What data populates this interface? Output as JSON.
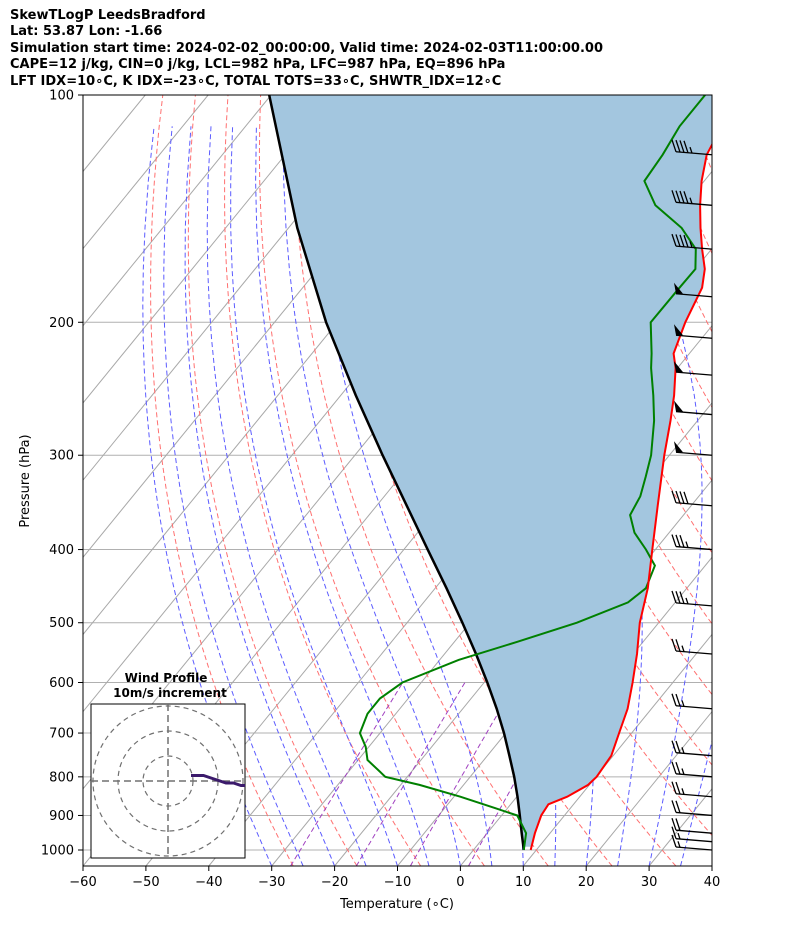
{
  "header": {
    "line1": "SkewTLogP LeedsBradford",
    "line2": "Lat: 53.87   Lon: -1.66",
    "line3": "Simulation start time: 2024-02-02_00:00:00, Valid time: 2024-02-03T11:00:00.00",
    "line4": "CAPE=12 j/kg, CIN=0 j/kg, LCL=982 hPa, LFC=987 hPa, EQ=896 hPa",
    "line5": "LFT IDX=10∘C, K IDX=-23∘C, TOTAL TOTS=33∘C, SHWTR_IDX=12∘C"
  },
  "colors": {
    "temperature": "#ff0000",
    "dewpoint": "#008000",
    "parcel": "#000000",
    "cape_fill": "#a3c6df",
    "dry_adiabat": "#ff7070",
    "moist_adiabat": "#5c5cff",
    "mixing_ratio": "#a040c0",
    "isotherm": "#a8a8a8",
    "hodograph": "#3b1a6b"
  },
  "chart_data": {
    "type": "skew-t",
    "xlabel": "Temperature (∘C)",
    "ylabel": "Pressure (hPa)",
    "xlim": [
      -60,
      40
    ],
    "ylim": [
      1050,
      100
    ],
    "x_scale": "linear (skewed)",
    "y_scale": "log",
    "x_ticks": [
      "−60",
      "−50",
      "−40",
      "−30",
      "−20",
      "−10",
      "0",
      "10",
      "20",
      "30",
      "40"
    ],
    "x_tick_values": [
      -60,
      -50,
      -40,
      -30,
      -20,
      -10,
      0,
      10,
      20,
      30,
      40
    ],
    "y_ticks": [
      1000,
      900,
      800,
      700,
      600,
      500,
      400,
      300,
      200,
      100
    ],
    "grid": true,
    "series": [
      {
        "key": "temperature",
        "pressure": [
          1000,
          950,
          900,
          870,
          850,
          820,
          800,
          750,
          700,
          650,
          600,
          550,
          500,
          450,
          400,
          350,
          300,
          270,
          250,
          230,
          220,
          200,
          180,
          170,
          160,
          150,
          140,
          130,
          120,
          110,
          100
        ],
        "values": [
          9.1,
          7.6,
          6.3,
          6.0,
          8.0,
          9.8,
          10.1,
          9.7,
          8.0,
          6.2,
          3.6,
          0.6,
          -3.0,
          -6.2,
          -10.5,
          -15.3,
          -20.8,
          -24.3,
          -27.0,
          -30.3,
          -32.5,
          -34.7,
          -36.5,
          -38.5,
          -41.5,
          -44.5,
          -47.5,
          -50.4,
          -53.0,
          -54.3,
          -55.5
        ]
      },
      {
        "key": "dewpoint",
        "pressure": [
          1000,
          950,
          900,
          880,
          850,
          820,
          800,
          760,
          730,
          700,
          660,
          630,
          600,
          560,
          530,
          500,
          470,
          450,
          420,
          400,
          380,
          360,
          340,
          320,
          300,
          270,
          250,
          230,
          220,
          200,
          180,
          170,
          160,
          150,
          140,
          130,
          120,
          110,
          100
        ],
        "values": [
          8.0,
          6.2,
          2.5,
          -2.0,
          -9.0,
          -17.0,
          -23.5,
          -28.5,
          -30.5,
          -33.2,
          -34.5,
          -34.5,
          -33.0,
          -27.0,
          -20.0,
          -13.0,
          -7.5,
          -6.5,
          -8.0,
          -11.5,
          -15.5,
          -18.5,
          -19.3,
          -21.0,
          -22.9,
          -26.9,
          -30.3,
          -34.2,
          -36.0,
          -40.2,
          -40.1,
          -40.0,
          -42.5,
          -47.5,
          -54.6,
          -59.5,
          -60.0,
          -61.0,
          -61.0
        ]
      },
      {
        "key": "parcel",
        "pressure": [
          1000,
          950,
          900,
          850,
          800,
          750,
          700,
          650,
          600,
          550,
          500,
          450,
          400,
          350,
          300,
          250,
          200,
          150,
          100
        ],
        "values": [
          8.0,
          5.5,
          2.9,
          0.1,
          -3.0,
          -6.5,
          -10.3,
          -14.6,
          -19.5,
          -25.0,
          -31.2,
          -38.2,
          -46.2,
          -55.2,
          -65.6,
          -77.6,
          -91.8,
          -108.6,
          -130.3
        ]
      }
    ],
    "wind_barbs": [
      {
        "pressure": 1000,
        "speed_kt": 15
      },
      {
        "pressure": 975,
        "speed_kt": 15
      },
      {
        "pressure": 950,
        "speed_kt": 20
      },
      {
        "pressure": 900,
        "speed_kt": 20
      },
      {
        "pressure": 850,
        "speed_kt": 25
      },
      {
        "pressure": 800,
        "speed_kt": 25
      },
      {
        "pressure": 750,
        "speed_kt": 25
      },
      {
        "pressure": 650,
        "speed_kt": 25
      },
      {
        "pressure": 550,
        "speed_kt": 25
      },
      {
        "pressure": 475,
        "speed_kt": 35
      },
      {
        "pressure": 400,
        "speed_kt": 35
      },
      {
        "pressure": 350,
        "speed_kt": 40
      },
      {
        "pressure": 300,
        "speed_kt": 50
      },
      {
        "pressure": 265,
        "speed_kt": 50
      },
      {
        "pressure": 235,
        "speed_kt": 50
      },
      {
        "pressure": 210,
        "speed_kt": 50
      },
      {
        "pressure": 185,
        "speed_kt": 50
      },
      {
        "pressure": 160,
        "speed_kt": 45
      },
      {
        "pressure": 140,
        "speed_kt": 45
      },
      {
        "pressure": 120,
        "speed_kt": 45
      }
    ],
    "hodograph": {
      "title": "Wind Profile",
      "subtitle": "10m/s increment",
      "rings_ms": [
        10,
        20,
        30
      ],
      "u": [
        2,
        4,
        7,
        10,
        13,
        16,
        19,
        22,
        25,
        28,
        31
      ],
      "v": [
        1,
        1,
        1,
        0,
        -1,
        -2,
        -2,
        -3,
        -3,
        -3,
        -3
      ]
    }
  }
}
